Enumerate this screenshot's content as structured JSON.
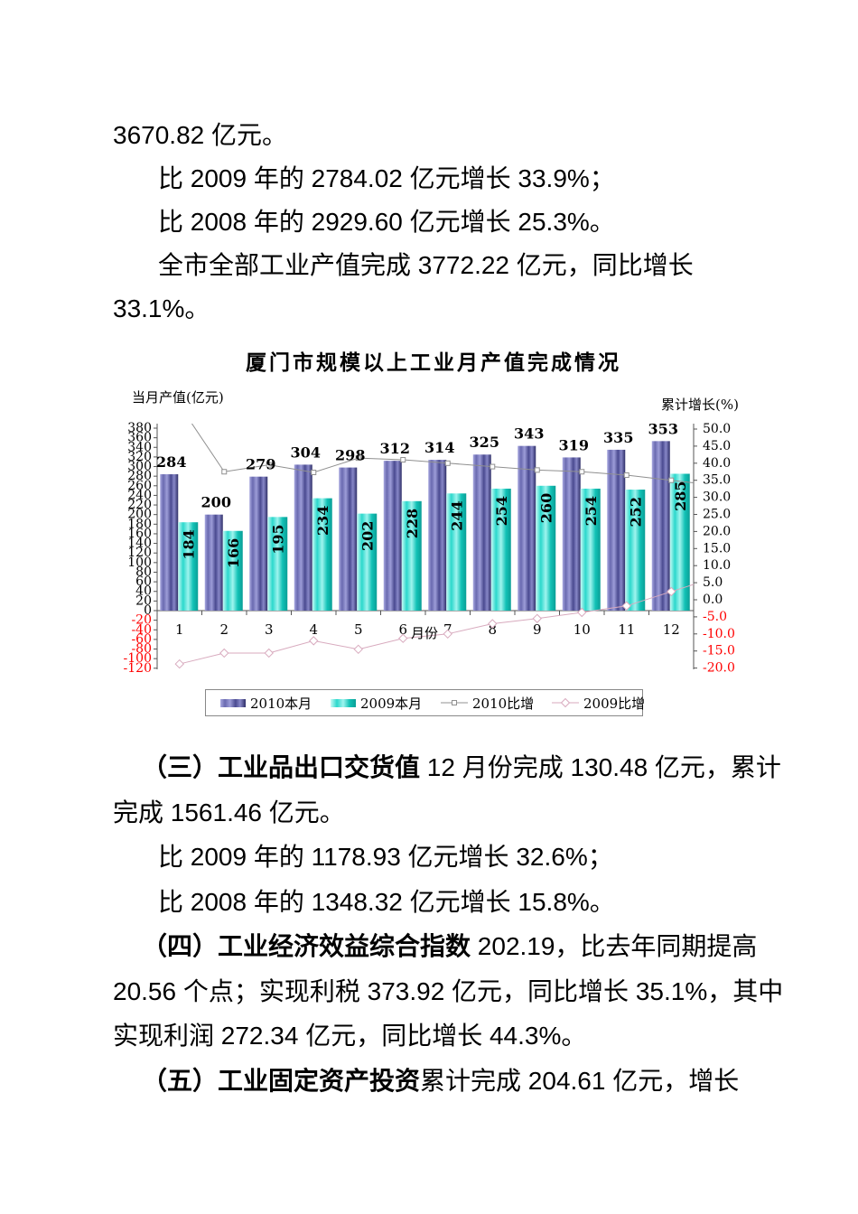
{
  "document": {
    "block1_lines": [
      {
        "indent": 0,
        "runs": [
          {
            "text": "3670.82 亿元。",
            "bold": false
          }
        ]
      },
      {
        "indent": 1,
        "runs": [
          {
            "text": "比 2009 年的 2784.02 亿元增长 33.9%；",
            "bold": false
          }
        ]
      },
      {
        "indent": 1,
        "runs": [
          {
            "text": "比 2008 年的 2929.60 亿元增长 25.3%。",
            "bold": false
          }
        ]
      },
      {
        "indent": 1,
        "runs": [
          {
            "text": "全市全部工业产值完成 3772.22 亿元，同比增长",
            "bold": false
          }
        ]
      },
      {
        "indent": 0,
        "runs": [
          {
            "text": "33.1%。",
            "bold": false
          }
        ]
      }
    ],
    "block2_lines": [
      {
        "indent": 2,
        "runs": [
          {
            "text": "（三）工业品出口交货值",
            "bold": true
          },
          {
            "text": " 12 月份完成 130.48 亿元，累计",
            "bold": false
          }
        ]
      },
      {
        "indent": 0,
        "runs": [
          {
            "text": "完成 1561.46 亿元。",
            "bold": false
          }
        ]
      },
      {
        "indent": 1,
        "runs": [
          {
            "text": "比 2009 年的 1178.93 亿元增长 32.6%；",
            "bold": false
          }
        ]
      },
      {
        "indent": 1,
        "runs": [
          {
            "text": "比 2008 年的 1348.32 亿元增长 15.8%。",
            "bold": false
          }
        ]
      },
      {
        "indent": 2,
        "runs": [
          {
            "text": "（四）工业经济效益综合指数",
            "bold": true
          },
          {
            "text": " 202.19，比去年同期提高",
            "bold": false
          }
        ]
      },
      {
        "indent": 0,
        "runs": [
          {
            "text": "20.56 个点；实现利税 373.92 亿元，同比增长 35.1%，其中",
            "bold": false
          }
        ]
      },
      {
        "indent": 0,
        "runs": [
          {
            "text": "实现利润 272.34 亿元，同比增长 44.3%。",
            "bold": false
          }
        ]
      },
      {
        "indent": 2,
        "runs": [
          {
            "text": "（五）工业固定资产投资",
            "bold": true
          },
          {
            "text": "累计完成 204.61 亿元，增长",
            "bold": false
          }
        ]
      }
    ]
  },
  "chart_data": {
    "type": "bar",
    "title": "厦门市规模以上工业月产值完成情况",
    "left_axis": {
      "title": "当月产值(亿元)",
      "min": -120,
      "max": 380,
      "step": 20
    },
    "right_axis": {
      "title": "累计增长(%)",
      "min": -20,
      "max": 50,
      "step": 5
    },
    "x_axis": {
      "title": "月份",
      "categories": [
        "1",
        "2",
        "3",
        "4",
        "5",
        "6",
        "7",
        "8",
        "9",
        "10",
        "11",
        "12"
      ]
    },
    "series": [
      {
        "name": "2010本月",
        "type": "bar",
        "axis": "left",
        "values": [
          284,
          200,
          279,
          304,
          298,
          312,
          314,
          325,
          343,
          319,
          335,
          353
        ]
      },
      {
        "name": "2009本月",
        "type": "bar",
        "axis": "left",
        "values": [
          184,
          166,
          195,
          234,
          202,
          228,
          244,
          254,
          260,
          254,
          252,
          285
        ]
      },
      {
        "name": "2010比增",
        "type": "line",
        "axis": "right",
        "values": [
          57,
          37.5,
          39.5,
          37.3,
          41.5,
          41,
          40,
          39,
          38,
          37.5,
          36.5,
          35
        ]
      },
      {
        "name": "2009比增",
        "type": "line",
        "axis": "right",
        "values": [
          -18.8,
          -15.6,
          -15.6,
          -12,
          -14.5,
          -11.3,
          -10,
          -7,
          -5.5,
          -3.7,
          -1.8,
          2.4
        ]
      }
    ],
    "legend_position": "bottom",
    "grid": false,
    "colors": {
      "bar_2010_light": "#a8a8e0",
      "bar_2010_dark": "#2e2e68",
      "bar_2009_light": "#c8fbf6",
      "bar_2009_dark": "#0a9e96",
      "line_2010": "#909090",
      "line_2009": "#d8aabe",
      "negative_tick": "#ff0000",
      "axis": "#555555"
    }
  }
}
